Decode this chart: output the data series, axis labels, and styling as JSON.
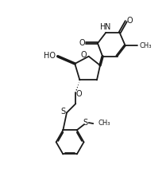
{
  "bg_color": "#ffffff",
  "line_color": "#1a1a1a",
  "lw": 1.3,
  "figsize": [
    2.09,
    2.46
  ],
  "dpi": 100,
  "xlim": [
    0,
    10
  ],
  "ylim": [
    0,
    12
  ]
}
